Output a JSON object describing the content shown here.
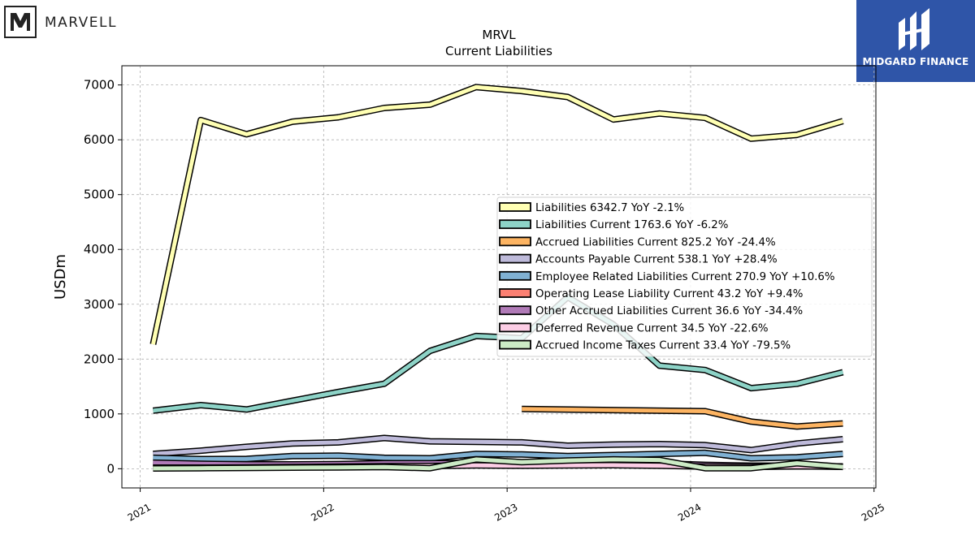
{
  "brand_left": {
    "name": "MARVELL",
    "icon": "marvell-m-logo-icon"
  },
  "brand_right": {
    "name": "MIDGARD FINANCE",
    "icon": "midgard-m-logo-icon",
    "color": "#2f55a8"
  },
  "chart_data": {
    "type": "line",
    "title": "MRVL",
    "subtitle": "Current  Liabilities",
    "ylabel": "USDm",
    "xlabel": "",
    "xlim": [
      2020.9,
      2025.01
    ],
    "ylim": [
      -350,
      7350
    ],
    "xticks": [
      2021,
      2022,
      2023,
      2024,
      2025
    ],
    "xtick_labels": [
      "2021",
      "2022",
      "2023",
      "2024",
      "2025"
    ],
    "yticks": [
      0,
      1000,
      2000,
      3000,
      4000,
      5000,
      6000,
      7000
    ],
    "ytick_labels": [
      "0",
      "1000",
      "2000",
      "3000",
      "4000",
      "5000",
      "6000",
      "7000"
    ],
    "grid": true,
    "legend_position": "center-right",
    "series": [
      {
        "name": "Liabilities  6342.7 YoY -2.1%",
        "color": "#ffffb3",
        "x": [
          2021.07,
          2021.33,
          2021.58,
          2021.83,
          2022.08,
          2022.33,
          2022.58,
          2022.83,
          2023.08,
          2023.33,
          2023.58,
          2023.83,
          2024.08,
          2024.33,
          2024.58,
          2024.83
        ],
        "y": [
          2270,
          6360,
          6100,
          6330,
          6410,
          6580,
          6640,
          6960,
          6890,
          6780,
          6370,
          6480,
          6400,
          6020,
          6090,
          6340
        ]
      },
      {
        "name": "Liabilities Current  1763.6 YoY -6.2%",
        "color": "#8dd3c7",
        "x": [
          2021.07,
          2021.33,
          2021.58,
          2021.83,
          2022.08,
          2022.33,
          2022.58,
          2022.83,
          2023.08,
          2023.33,
          2023.58,
          2023.83,
          2024.08,
          2024.33,
          2024.58,
          2024.83
        ],
        "y": [
          1060,
          1160,
          1080,
          1240,
          1400,
          1550,
          2150,
          2420,
          2380,
          3130,
          2630,
          1880,
          1800,
          1470,
          1550,
          1760
        ]
      },
      {
        "name": "Accrued Liabilities Current  825.2 YoY -24.4%",
        "color": "#fdb462",
        "x": [
          2023.08,
          2024.08,
          2024.33,
          2024.58,
          2024.83
        ],
        "y": [
          1090,
          1050,
          860,
          770,
          825
        ]
      },
      {
        "name": "Accounts Payable Current  538.1 YoY +28.4%",
        "color": "#bebada",
        "x": [
          2021.07,
          2021.33,
          2021.58,
          2021.83,
          2022.08,
          2022.33,
          2022.58,
          2022.83,
          2023.08,
          2023.33,
          2023.58,
          2023.83,
          2024.08,
          2024.33,
          2024.58,
          2024.83
        ],
        "y": [
          270,
          330,
          400,
          460,
          480,
          560,
          500,
          490,
          480,
          420,
          440,
          450,
          430,
          340,
          460,
          538
        ]
      },
      {
        "name": "Employee Related Liabilities Current  270.9 YoY +10.6%",
        "color": "#80b1d3",
        "x": [
          2021.07,
          2021.33,
          2021.58,
          2021.83,
          2022.08,
          2022.33,
          2022.58,
          2022.83,
          2023.08,
          2023.33,
          2023.58,
          2023.83,
          2024.08,
          2024.33,
          2024.58,
          2024.83
        ],
        "y": [
          200,
          175,
          180,
          230,
          240,
          200,
          190,
          270,
          260,
          230,
          250,
          270,
          290,
          190,
          210,
          271
        ]
      },
      {
        "name": "Operating Lease Liability Current  43.2 YoY +9.4%",
        "color": "#fb8072",
        "x": [
          2021.07,
          2021.33,
          2021.58,
          2021.83,
          2022.08,
          2022.33,
          2022.58,
          2022.83,
          2023.08,
          2023.33,
          2023.58,
          2023.83,
          2024.08,
          2024.33,
          2024.58,
          2024.83
        ],
        "y": [
          75,
          70,
          68,
          72,
          75,
          80,
          85,
          82,
          80,
          78,
          70,
          60,
          50,
          40,
          42,
          43
        ]
      },
      {
        "name": "Other Accrued Liabilities Current  36.6 YoY -34.4%",
        "color": "#b07ab7",
        "x": [
          2021.07,
          2021.33,
          2021.58,
          2021.83,
          2022.08,
          2022.33,
          2022.58,
          2022.83,
          2023.08,
          2023.33,
          2023.58,
          2023.83,
          2024.08,
          2024.33,
          2024.58,
          2024.83
        ],
        "y": [
          110,
          90,
          80,
          80,
          85,
          100,
          100,
          110,
          105,
          90,
          95,
          100,
          70,
          55,
          56,
          37
        ]
      },
      {
        "name": "Deferred Revenue Current  34.5 YoY -22.6%",
        "color": "#fccde5",
        "x": [
          2021.07,
          2021.33,
          2021.58,
          2021.83,
          2022.08,
          2022.33,
          2022.58,
          2022.83,
          2023.08,
          2023.33,
          2023.58,
          2023.83,
          2024.08,
          2024.33,
          2024.58,
          2024.83
        ],
        "y": [
          20,
          20,
          25,
          30,
          40,
          45,
          50,
          60,
          55,
          60,
          65,
          55,
          40,
          30,
          45,
          35
        ]
      },
      {
        "name": "Accrued Income Taxes Current  33.4 YoY -79.5%",
        "color": "#ccebc5",
        "x": [
          2021.07,
          2021.33,
          2021.58,
          2021.83,
          2022.08,
          2022.33,
          2022.58,
          2022.83,
          2023.08,
          2023.33,
          2023.58,
          2023.83,
          2024.08,
          2024.33,
          2024.58,
          2024.83
        ],
        "y": [
          5,
          10,
          15,
          20,
          25,
          30,
          10,
          170,
          120,
          150,
          170,
          160,
          10,
          10,
          100,
          33
        ]
      }
    ]
  }
}
